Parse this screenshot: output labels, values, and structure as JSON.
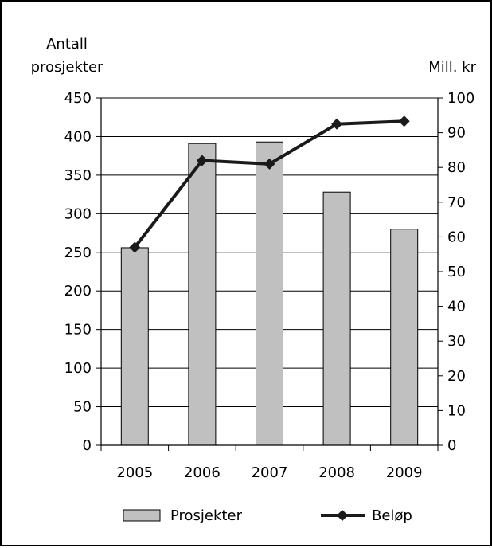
{
  "chart_data": {
    "type": "bar+line",
    "categories": [
      "2005",
      "2006",
      "2007",
      "2008",
      "2009"
    ],
    "left_axis": {
      "title_lines": [
        "Antall",
        "prosjekter"
      ],
      "ylim": [
        0,
        450
      ],
      "ticks": [
        0,
        50,
        100,
        150,
        200,
        250,
        300,
        350,
        400,
        450
      ]
    },
    "right_axis": {
      "title": "Mill. kr",
      "ylim": [
        0,
        100
      ],
      "ticks": [
        0,
        10,
        20,
        30,
        40,
        50,
        60,
        70,
        80,
        90,
        100
      ]
    },
    "series": [
      {
        "name": "Prosjekter",
        "type": "bar",
        "axis": "left",
        "values": [
          256,
          391,
          393,
          328,
          280
        ],
        "color": "#c0c0c0"
      },
      {
        "name": "Beløp",
        "type": "line",
        "axis": "right",
        "values": [
          57,
          82,
          81,
          92.5,
          93.3
        ],
        "color": "#1a1a1a"
      }
    ],
    "grid": "horizontal"
  }
}
